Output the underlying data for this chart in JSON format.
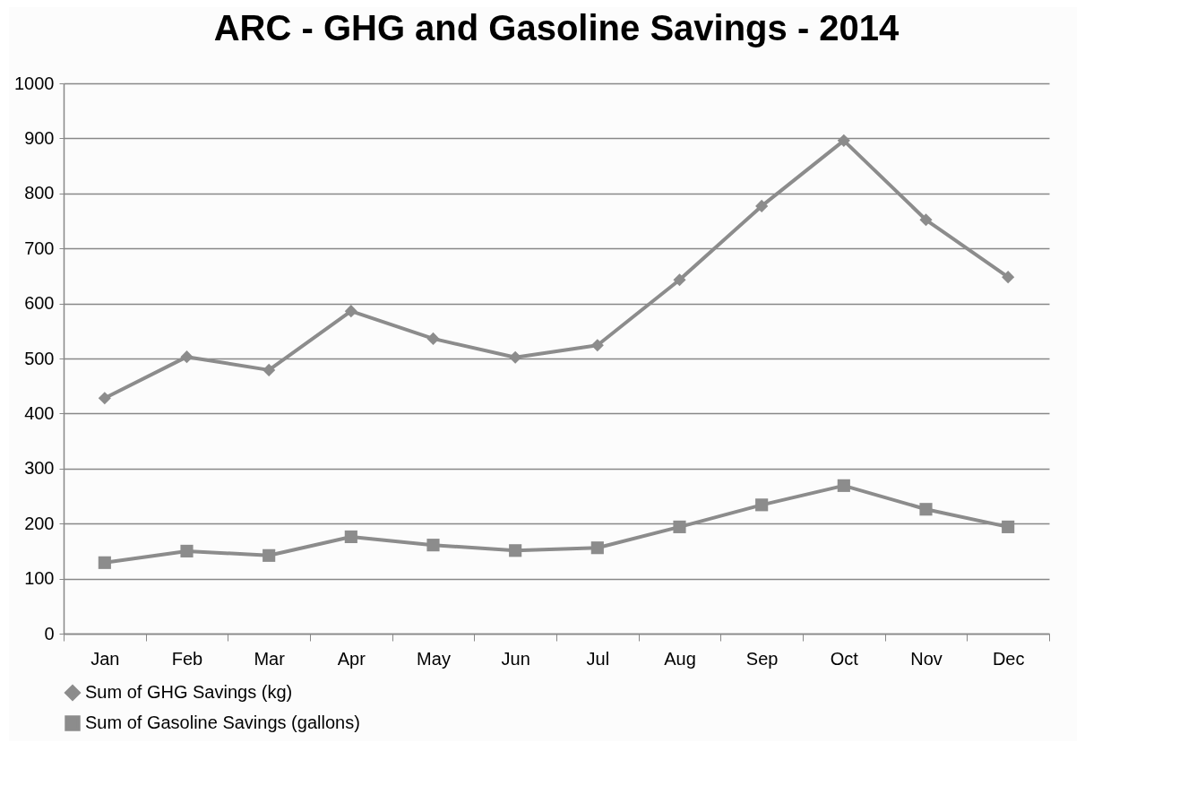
{
  "chart_data": {
    "type": "line",
    "title": "ARC - GHG and Gasoline Savings - 2014",
    "categories": [
      "Jan",
      "Feb",
      "Mar",
      "Apr",
      "May",
      "Jun",
      "Jul",
      "Aug",
      "Sep",
      "Oct",
      "Nov",
      "Dec"
    ],
    "series": [
      {
        "name": "Sum of GHG Savings (kg)",
        "color": "#8c8c8c",
        "marker": "diamond",
        "values": [
          428,
          503,
          479,
          586,
          536,
          502,
          524,
          643,
          777,
          896,
          752,
          648
        ]
      },
      {
        "name": "Sum of Gasoline Savings (gallons)",
        "color": "#8c8c8c",
        "marker": "square",
        "values": [
          129,
          150,
          142,
          176,
          161,
          151,
          156,
          194,
          234,
          269,
          226,
          194
        ]
      }
    ],
    "ylim": [
      0,
      1000
    ],
    "yticks": [
      0,
      100,
      200,
      300,
      400,
      500,
      600,
      700,
      800,
      900,
      1000
    ],
    "grid": "y",
    "legend": "bottom",
    "line_style": "solid"
  }
}
